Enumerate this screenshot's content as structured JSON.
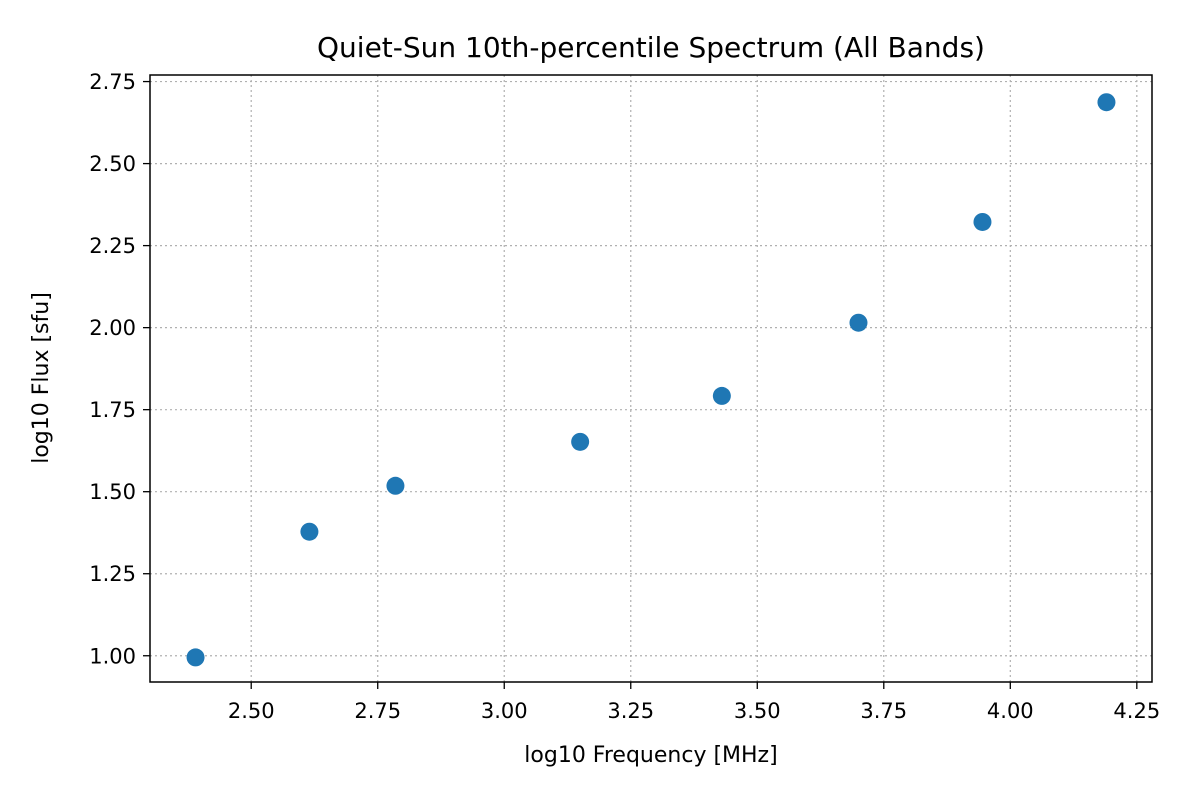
{
  "chart_data": {
    "type": "scatter",
    "title": "Quiet-Sun 10th-percentile Spectrum (All Bands)",
    "xlabel": "log10 Frequency [MHz]",
    "ylabel": "log10 Flux [sfu]",
    "xlim": [
      2.3,
      4.28
    ],
    "ylim": [
      0.92,
      2.77
    ],
    "xticks": [
      2.5,
      2.75,
      3.0,
      3.25,
      3.5,
      3.75,
      4.0,
      4.25
    ],
    "yticks": [
      1.0,
      1.25,
      1.5,
      1.75,
      2.0,
      2.25,
      2.5,
      2.75
    ],
    "grid": true,
    "legend": "none",
    "color": "#1f77b4",
    "points": [
      {
        "x": 2.39,
        "y": 0.995
      },
      {
        "x": 2.615,
        "y": 1.378
      },
      {
        "x": 2.785,
        "y": 1.518
      },
      {
        "x": 3.15,
        "y": 1.652
      },
      {
        "x": 3.43,
        "y": 1.792
      },
      {
        "x": 3.7,
        "y": 2.015
      },
      {
        "x": 3.945,
        "y": 2.322
      },
      {
        "x": 4.19,
        "y": 2.687
      }
    ]
  }
}
